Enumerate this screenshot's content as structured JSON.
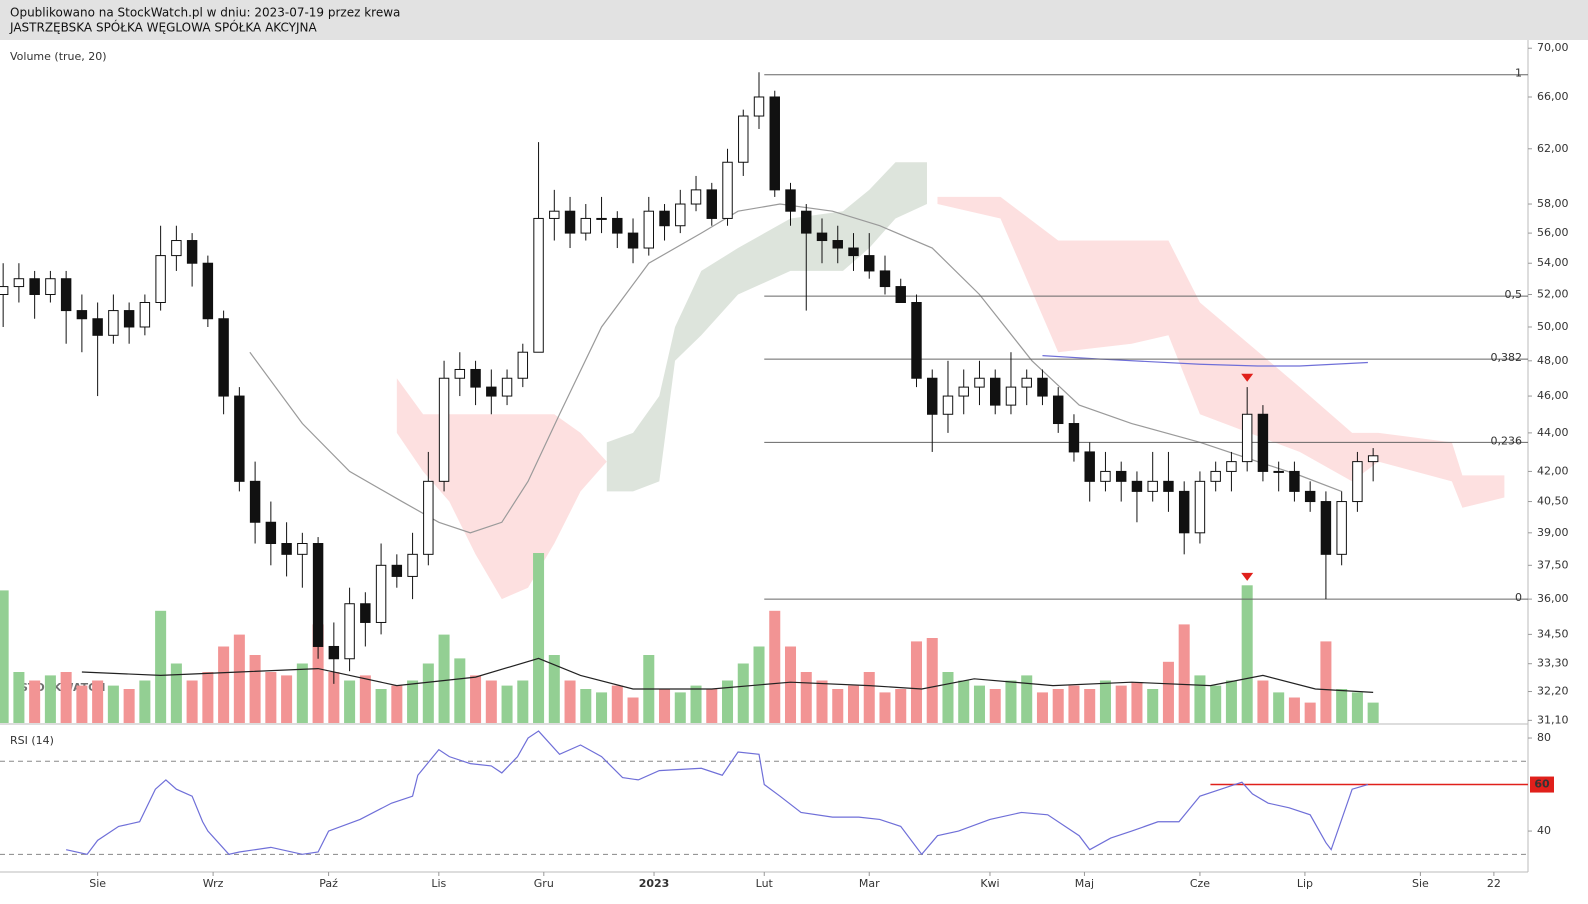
{
  "header": {
    "line1": "Opublikowano na StockWatch.pl w dniu: 2023-07-19 przez krewa",
    "line2": "JASTRZĘBSKA SPÓŁKA WĘGLOWA SPÓŁKA AKCYJNA"
  },
  "chart_data": {
    "type": "candlestick",
    "volume_label": "Volume (true, 20)",
    "watermark": "STOCKWATCH",
    "x": [
      0,
      3,
      6,
      9,
      12,
      15,
      18,
      21,
      24,
      27,
      30,
      33,
      36,
      39,
      42,
      45,
      48,
      51,
      54,
      57,
      60,
      63,
      66,
      69,
      72,
      75,
      78,
      81,
      84,
      87,
      90,
      93,
      96,
      99,
      102,
      105,
      108,
      111,
      114,
      117,
      120,
      123,
      126,
      129,
      132,
      135,
      138,
      141,
      144,
      147,
      150,
      153,
      156,
      159,
      162,
      165,
      168,
      171,
      174,
      177,
      180,
      183,
      186,
      189,
      192,
      195,
      198,
      201,
      204,
      207,
      210,
      213,
      216,
      219,
      222,
      225,
      228,
      231,
      234,
      237,
      240,
      243,
      246,
      249,
      252,
      255,
      258,
      261
    ],
    "open": [
      52,
      52.5,
      53,
      52,
      53,
      51,
      50.5,
      49.5,
      51,
      50,
      51.5,
      54.5,
      55.5,
      54,
      50.5,
      46,
      41.5,
      39.5,
      38.5,
      38,
      38.5,
      34,
      33.5,
      35.8,
      35,
      37.5,
      37,
      38,
      41.5,
      47,
      47.5,
      46.5,
      46,
      47,
      48.5,
      57,
      57.5,
      56,
      57,
      57,
      56,
      55,
      57.5,
      56.5,
      58,
      59,
      57,
      61,
      64.5,
      66,
      59,
      57.5,
      56,
      55.5,
      55,
      54.5,
      53.5,
      52.5,
      51.5,
      47,
      45,
      46,
      46.5,
      47,
      45.5,
      46.5,
      47,
      46,
      44.5,
      43,
      41.5,
      42,
      41.5,
      41,
      41.5,
      41,
      39,
      41.5,
      42,
      42.5,
      45,
      42,
      42,
      41,
      40.5,
      38,
      40.5,
      42.5
    ],
    "high": [
      54,
      54,
      53.5,
      53.5,
      53.5,
      52,
      51.5,
      52,
      51.5,
      52,
      56.5,
      56.5,
      56,
      54.5,
      51,
      46.5,
      42.5,
      40.5,
      39.5,
      39,
      38.8,
      35,
      36.5,
      36.3,
      38.5,
      38,
      39,
      43,
      48,
      48.5,
      48,
      47.5,
      47.5,
      49,
      62.5,
      59,
      58.5,
      58,
      58.5,
      57.5,
      57,
      58.5,
      58,
      59,
      60,
      59.5,
      62,
      65,
      68,
      66.5,
      59.5,
      58,
      57,
      56.5,
      56,
      56,
      54.5,
      53,
      52,
      47.5,
      48,
      47.5,
      48,
      47.5,
      48.5,
      47.5,
      47.5,
      46.5,
      45,
      43.5,
      43,
      42.5,
      42,
      43,
      43,
      41.5,
      42,
      42.5,
      43,
      46.5,
      45.5,
      42.5,
      42.5,
      41.5,
      41,
      41,
      43,
      43.2
    ],
    "low": [
      50,
      51.5,
      50.5,
      51.5,
      49,
      48.5,
      46,
      49,
      49,
      49.5,
      51,
      53.5,
      52.5,
      50,
      45,
      41,
      38.5,
      37.5,
      37,
      36.5,
      33.5,
      32.5,
      33,
      34,
      34.5,
      36.5,
      36,
      37.5,
      41,
      46,
      45.5,
      45,
      45.5,
      46.5,
      48.5,
      55.5,
      55,
      55.5,
      56,
      55,
      54,
      54.5,
      55.5,
      56,
      57.5,
      56.5,
      56.5,
      60,
      63.5,
      58.5,
      56.5,
      51,
      54,
      54,
      53.5,
      53,
      52,
      51.5,
      46.5,
      43,
      44,
      45,
      45.5,
      45,
      45,
      45.5,
      45.5,
      44,
      42.5,
      40.5,
      41,
      40.5,
      39.5,
      40.5,
      40,
      38,
      38.5,
      41,
      41,
      42,
      41.5,
      41,
      40.5,
      40,
      36,
      37.5,
      40,
      41.5
    ],
    "close": [
      52.5,
      53,
      52,
      53,
      51,
      50.5,
      49.5,
      51,
      50,
      51.5,
      54.5,
      55.5,
      54,
      50.5,
      46,
      41.5,
      39.5,
      38.5,
      38,
      38.5,
      34,
      33.5,
      35.8,
      35,
      37.5,
      37,
      38,
      41.5,
      47,
      47.5,
      46.5,
      46,
      47,
      48.5,
      57,
      57.5,
      56,
      57,
      57,
      56,
      55,
      57.5,
      56.5,
      58,
      59,
      57,
      61,
      64.5,
      66,
      59,
      57.5,
      56,
      55.5,
      55,
      54.5,
      53.5,
      52.5,
      51.5,
      47,
      45,
      46,
      46.5,
      47,
      45.5,
      46.5,
      47,
      46,
      44.5,
      43,
      41.5,
      42,
      41.5,
      41,
      41.5,
      41,
      39,
      41.5,
      42,
      42.5,
      45,
      42,
      42,
      41,
      40.5,
      38,
      40.5,
      42.5,
      42.8
    ],
    "volume": [
      78,
      30,
      25,
      28,
      30,
      22,
      25,
      22,
      20,
      25,
      66,
      35,
      25,
      30,
      45,
      52,
      40,
      30,
      28,
      35,
      58,
      30,
      25,
      28,
      20,
      22,
      25,
      35,
      52,
      38,
      28,
      25,
      22,
      25,
      100,
      40,
      25,
      20,
      18,
      22,
      15,
      40,
      20,
      18,
      22,
      20,
      25,
      35,
      45,
      66,
      45,
      30,
      25,
      20,
      22,
      30,
      18,
      20,
      48,
      50,
      30,
      25,
      22,
      20,
      25,
      28,
      18,
      20,
      22,
      20,
      25,
      22,
      24,
      20,
      36,
      58,
      28,
      22,
      25,
      81,
      25,
      18,
      15,
      12,
      48,
      20,
      18,
      12
    ],
    "up_color": "#ffffff",
    "down_color": "#111111",
    "vol_up_color": "#93cf93",
    "vol_down_color": "#f29494",
    "log_scale": true,
    "xlim": [
      -0.6,
      290.5
    ],
    "ylim": [
      31.0,
      70.7
    ],
    "xticks": [
      {
        "value": 18,
        "label": "Sie"
      },
      {
        "value": 40,
        "label": "Wrz"
      },
      {
        "value": 62,
        "label": "Paź"
      },
      {
        "value": 83,
        "label": "Lis"
      },
      {
        "value": 103,
        "label": "Gru"
      },
      {
        "value": 124,
        "label": "2023"
      },
      {
        "value": 145,
        "label": "Lut"
      },
      {
        "value": 165,
        "label": "Mar"
      },
      {
        "value": 188,
        "label": "Kwi"
      },
      {
        "value": 206,
        "label": "Maj"
      },
      {
        "value": 228,
        "label": "Cze"
      },
      {
        "value": 248,
        "label": "Lip"
      },
      {
        "value": 270,
        "label": "Sie"
      },
      {
        "value": 284,
        "label": "22"
      }
    ],
    "yticks": [
      {
        "value": 70,
        "label": "70,00"
      },
      {
        "value": 66,
        "label": "66,00"
      },
      {
        "value": 62,
        "label": "62,00"
      },
      {
        "value": 58,
        "label": "58,00"
      },
      {
        "value": 56,
        "label": "56,00"
      },
      {
        "value": 54,
        "label": "54,00"
      },
      {
        "value": 52,
        "label": "52,00"
      },
      {
        "value": 50,
        "label": "50,00"
      },
      {
        "value": 48,
        "label": "48,00"
      },
      {
        "value": 46,
        "label": "46,00"
      },
      {
        "value": 44,
        "label": "44,00"
      },
      {
        "value": 42,
        "label": "42,00"
      },
      {
        "value": 40.5,
        "label": "40,50"
      },
      {
        "value": 39,
        "label": "39,00"
      },
      {
        "value": 37.5,
        "label": "37,50"
      },
      {
        "value": 36,
        "label": "36,00"
      },
      {
        "value": 34.5,
        "label": "34,50"
      },
      {
        "value": 33.3,
        "label": "33,30"
      },
      {
        "value": 32.2,
        "label": "32,20"
      },
      {
        "value": 31.1,
        "label": "31,10"
      }
    ],
    "volume_ma": {
      "x": [
        15,
        30,
        45,
        60,
        75,
        90,
        102,
        110,
        120,
        135,
        150,
        165,
        175,
        185,
        200,
        215,
        230,
        240,
        250,
        261
      ],
      "values": [
        30,
        28,
        30,
        32,
        22,
        27,
        38,
        28,
        20,
        20,
        24,
        22,
        20,
        26,
        22,
        24,
        22,
        28,
        20,
        18
      ],
      "color": "#222222"
    },
    "lines": [
      {
        "x": [
          47,
          57,
          66,
          76,
          83,
          89,
          95,
          100,
          106,
          114,
          123,
          133,
          140,
          148,
          158,
          167,
          177,
          186,
          196,
          205,
          215,
          228,
          239,
          247,
          255
        ],
        "values": [
          48.5,
          44.5,
          42,
          40.5,
          39.5,
          39,
          39.5,
          41.5,
          45,
          50,
          54,
          56,
          57.5,
          58,
          57.5,
          56.5,
          55,
          52,
          48,
          45.5,
          44.5,
          43.5,
          42.5,
          41.8,
          41
        ],
        "color": "#9a9a9a"
      },
      {
        "x": [
          198,
          209,
          228,
          239,
          247,
          260
        ],
        "values": [
          48.3,
          48.1,
          47.8,
          47.7,
          47.7,
          47.9
        ],
        "color": "#6f6fd8"
      }
    ],
    "clouds": [
      {
        "x": [
          75,
          80,
          85,
          90,
          95,
          100,
          105,
          110,
          115
        ],
        "upper": [
          47,
          45,
          45,
          45,
          45,
          45,
          45,
          44,
          42.5
        ],
        "lower": [
          44,
          42,
          40.5,
          38,
          36,
          36.5,
          38.5,
          41,
          42.5
        ],
        "color": "#fde0e0"
      },
      {
        "x": [
          115,
          120,
          125,
          128,
          133,
          140,
          150,
          160,
          165,
          170,
          176
        ],
        "upper": [
          43.5,
          44,
          46,
          50,
          53.5,
          55,
          57,
          57.5,
          59,
          61,
          61
        ],
        "lower": [
          41,
          41,
          41.5,
          48,
          49.5,
          52,
          53.5,
          53.5,
          55,
          57,
          58
        ],
        "color": "#dde4dc"
      },
      {
        "x": [
          178,
          190,
          201,
          215,
          222,
          228,
          247,
          257,
          262,
          276,
          278,
          286
        ],
        "upper": [
          58.5,
          58.5,
          55.5,
          55.5,
          55.5,
          51.5,
          46.5,
          44,
          44,
          43.5,
          41.8,
          41.8
        ],
        "lower": [
          58,
          57,
          48.5,
          49,
          49.5,
          45,
          43,
          41.5,
          42.5,
          41.5,
          40.2,
          40.7
        ],
        "color": "#fde0e0"
      }
    ],
    "fib": {
      "x": 145,
      "color": "#666666",
      "levels": [
        {
          "value": 67.8,
          "label": "1"
        },
        {
          "value": 51.9,
          "label": "0,5"
        },
        {
          "value": 48.1,
          "label": "0,382"
        },
        {
          "value": 43.5,
          "label": "0,236"
        },
        {
          "value": 36.0,
          "label": "0"
        }
      ]
    },
    "markers": {
      "x": [
        237,
        237
      ],
      "values": [
        46.8,
        36.8
      ],
      "color": "#e0201b"
    }
  },
  "rsi": {
    "type": "line",
    "title": "RSI (14)",
    "color": "#6f6fd8",
    "x": [
      12,
      16,
      18,
      22,
      26,
      29,
      31,
      33,
      36,
      38,
      39,
      43,
      45,
      51,
      57,
      60,
      62,
      68,
      74,
      78,
      79,
      83,
      85,
      89,
      93,
      95,
      98,
      100,
      102,
      106,
      110,
      114,
      118,
      121,
      125,
      133,
      137,
      140,
      144,
      145,
      148,
      152,
      158,
      163,
      167,
      171,
      175,
      178,
      182,
      188,
      194,
      199,
      205,
      207,
      211,
      215,
      220,
      224,
      228,
      232,
      236,
      238,
      241,
      245,
      249,
      252,
      253,
      257,
      260
    ],
    "values": [
      32,
      30,
      36,
      42,
      44,
      58,
      62,
      58,
      55,
      44,
      40,
      30,
      31,
      33,
      30,
      31,
      40,
      45,
      52,
      55,
      64,
      75,
      72,
      69,
      68,
      65,
      72,
      80,
      83,
      73,
      77,
      72,
      63,
      62,
      66,
      67,
      64,
      74,
      73,
      60,
      55,
      48,
      46,
      46,
      45,
      42,
      30,
      38,
      40,
      45,
      48,
      47,
      38,
      32,
      37,
      40,
      44,
      44,
      55,
      58,
      61,
      56,
      52,
      50,
      47,
      35,
      32,
      58,
      60
    ],
    "ylim": [
      22.4,
      85.6
    ],
    "yticks": [
      80,
      40
    ],
    "bands": [
      30,
      70
    ],
    "level": {
      "value": 60,
      "x": 230,
      "color": "#e0201b"
    }
  }
}
